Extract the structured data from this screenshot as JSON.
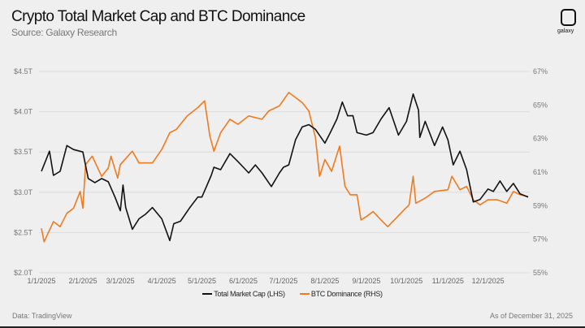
{
  "header": {
    "title": "Crypto Total Market Cap and BTC Dominance",
    "subtitle": "Source: Galaxy Research",
    "logo_text": "galaxy"
  },
  "footer": {
    "data_source": "Data: TradingView",
    "as_of": "As of December 31, 2025"
  },
  "chart_data": {
    "type": "line",
    "title": "Crypto Total Market Cap and BTC Dominance",
    "grid": true,
    "legend_placement": "bottom-center",
    "x_ticks": [
      "1/1/2025",
      "2/1/2025",
      "3/1/2025",
      "4/1/2025",
      "5/1/2025",
      "6/1/2025",
      "7/1/2025",
      "8/1/2025",
      "9/1/2025",
      "10/1/2025",
      "11/1/2025",
      "12/1/2025"
    ],
    "xlim": [
      "2025-01-01",
      "2025-12-31"
    ],
    "y_left": {
      "ticks": [
        "$4.5T",
        "$4.0T",
        "$3.5T",
        "$3.0T",
        "$2.5T",
        "$2.0T"
      ],
      "lim": [
        2.0,
        4.5
      ],
      "unit": "$T"
    },
    "y_right": {
      "ticks": [
        "67%",
        "65%",
        "63%",
        "61%",
        "59%",
        "57%",
        "55%"
      ],
      "lim": [
        55,
        67
      ],
      "unit": "%"
    },
    "series": [
      {
        "name": "Total Market Cap (LHS)",
        "axis": "left",
        "color": "#111111",
        "points": [
          [
            "2025-01-01",
            3.25
          ],
          [
            "2025-01-07",
            3.5
          ],
          [
            "2025-01-10",
            3.2
          ],
          [
            "2025-01-15",
            3.25
          ],
          [
            "2025-01-20",
            3.57
          ],
          [
            "2025-01-25",
            3.52
          ],
          [
            "2025-02-01",
            3.49
          ],
          [
            "2025-02-05",
            3.16
          ],
          [
            "2025-02-10",
            3.11
          ],
          [
            "2025-02-15",
            3.16
          ],
          [
            "2025-02-20",
            3.12
          ],
          [
            "2025-02-25",
            2.93
          ],
          [
            "2025-03-01",
            2.76
          ],
          [
            "2025-03-03",
            3.08
          ],
          [
            "2025-03-05",
            2.8
          ],
          [
            "2025-03-10",
            2.53
          ],
          [
            "2025-03-15",
            2.66
          ],
          [
            "2025-03-20",
            2.72
          ],
          [
            "2025-03-25",
            2.8
          ],
          [
            "2025-04-01",
            2.66
          ],
          [
            "2025-04-07",
            2.39
          ],
          [
            "2025-04-10",
            2.6
          ],
          [
            "2025-04-15",
            2.63
          ],
          [
            "2025-04-22",
            2.8
          ],
          [
            "2025-04-28",
            2.93
          ],
          [
            "2025-05-01",
            2.93
          ],
          [
            "2025-05-08",
            3.2
          ],
          [
            "2025-05-10",
            3.3
          ],
          [
            "2025-05-15",
            3.27
          ],
          [
            "2025-05-22",
            3.47
          ],
          [
            "2025-05-28",
            3.37
          ],
          [
            "2025-06-01",
            3.3
          ],
          [
            "2025-06-05",
            3.23
          ],
          [
            "2025-06-10",
            3.33
          ],
          [
            "2025-06-15",
            3.23
          ],
          [
            "2025-06-22",
            3.06
          ],
          [
            "2025-06-28",
            3.23
          ],
          [
            "2025-07-01",
            3.3
          ],
          [
            "2025-07-05",
            3.33
          ],
          [
            "2025-07-10",
            3.64
          ],
          [
            "2025-07-15",
            3.8
          ],
          [
            "2025-07-20",
            3.83
          ],
          [
            "2025-07-25",
            3.77
          ],
          [
            "2025-08-01",
            3.6
          ],
          [
            "2025-08-05",
            3.73
          ],
          [
            "2025-08-10",
            3.9
          ],
          [
            "2025-08-14",
            4.11
          ],
          [
            "2025-08-18",
            3.94
          ],
          [
            "2025-08-22",
            3.94
          ],
          [
            "2025-08-25",
            3.73
          ],
          [
            "2025-09-01",
            3.7
          ],
          [
            "2025-09-06",
            3.73
          ],
          [
            "2025-09-12",
            3.9
          ],
          [
            "2025-09-18",
            4.04
          ],
          [
            "2025-09-25",
            3.7
          ],
          [
            "2025-10-01",
            3.87
          ],
          [
            "2025-10-06",
            4.21
          ],
          [
            "2025-10-10",
            4.01
          ],
          [
            "2025-10-11",
            3.67
          ],
          [
            "2025-10-15",
            3.87
          ],
          [
            "2025-10-22",
            3.57
          ],
          [
            "2025-10-28",
            3.8
          ],
          [
            "2025-11-01",
            3.64
          ],
          [
            "2025-11-05",
            3.33
          ],
          [
            "2025-11-10",
            3.5
          ],
          [
            "2025-11-15",
            3.27
          ],
          [
            "2025-11-20",
            2.87
          ],
          [
            "2025-11-25",
            2.9
          ],
          [
            "2025-12-01",
            3.03
          ],
          [
            "2025-12-05",
            3.0
          ],
          [
            "2025-12-10",
            3.13
          ],
          [
            "2025-12-15",
            3.0
          ],
          [
            "2025-12-20",
            3.1
          ],
          [
            "2025-12-25",
            2.97
          ],
          [
            "2025-12-31",
            2.93
          ]
        ]
      },
      {
        "name": "BTC Dominance (RHS)",
        "axis": "right",
        "color": "#f07a1f",
        "points": [
          [
            "2025-01-01",
            57.6
          ],
          [
            "2025-01-03",
            56.8
          ],
          [
            "2025-01-10",
            58.0
          ],
          [
            "2025-01-15",
            57.7
          ],
          [
            "2025-01-20",
            58.5
          ],
          [
            "2025-01-25",
            58.8
          ],
          [
            "2025-01-30",
            59.8
          ],
          [
            "2025-02-01",
            58.8
          ],
          [
            "2025-02-03",
            61.4
          ],
          [
            "2025-02-08",
            61.9
          ],
          [
            "2025-02-15",
            60.7
          ],
          [
            "2025-02-20",
            61.2
          ],
          [
            "2025-02-22",
            61.9
          ],
          [
            "2025-02-27",
            60.6
          ],
          [
            "2025-03-01",
            61.4
          ],
          [
            "2025-03-10",
            62.2
          ],
          [
            "2025-03-15",
            61.5
          ],
          [
            "2025-03-25",
            61.5
          ],
          [
            "2025-04-01",
            62.3
          ],
          [
            "2025-04-07",
            63.3
          ],
          [
            "2025-04-12",
            63.5
          ],
          [
            "2025-04-20",
            64.3
          ],
          [
            "2025-04-28",
            64.8
          ],
          [
            "2025-05-03",
            65.2
          ],
          [
            "2025-05-07",
            63.1
          ],
          [
            "2025-05-10",
            62.2
          ],
          [
            "2025-05-15",
            63.3
          ],
          [
            "2025-05-22",
            64.1
          ],
          [
            "2025-05-28",
            63.8
          ],
          [
            "2025-06-05",
            64.3
          ],
          [
            "2025-06-15",
            64.1
          ],
          [
            "2025-06-20",
            64.6
          ],
          [
            "2025-06-28",
            64.9
          ],
          [
            "2025-07-05",
            65.7
          ],
          [
            "2025-07-10",
            65.4
          ],
          [
            "2025-07-15",
            65.1
          ],
          [
            "2025-07-20",
            64.6
          ],
          [
            "2025-07-25",
            63.0
          ],
          [
            "2025-07-28",
            60.7
          ],
          [
            "2025-08-01",
            61.7
          ],
          [
            "2025-08-06",
            61.0
          ],
          [
            "2025-08-12",
            62.5
          ],
          [
            "2025-08-16",
            60.1
          ],
          [
            "2025-08-20",
            59.6
          ],
          [
            "2025-08-25",
            59.6
          ],
          [
            "2025-08-28",
            58.1
          ],
          [
            "2025-09-01",
            58.3
          ],
          [
            "2025-09-06",
            58.6
          ],
          [
            "2025-09-12",
            58.1
          ],
          [
            "2025-09-17",
            57.7
          ],
          [
            "2025-09-22",
            58.1
          ],
          [
            "2025-09-28",
            58.6
          ],
          [
            "2025-10-03",
            59.0
          ],
          [
            "2025-10-06",
            60.7
          ],
          [
            "2025-10-08",
            59.1
          ],
          [
            "2025-10-15",
            59.4
          ],
          [
            "2025-10-22",
            59.8
          ],
          [
            "2025-11-01",
            59.9
          ],
          [
            "2025-11-04",
            60.7
          ],
          [
            "2025-11-10",
            59.9
          ],
          [
            "2025-11-15",
            60.1
          ],
          [
            "2025-11-20",
            59.3
          ],
          [
            "2025-11-25",
            59.0
          ],
          [
            "2025-12-01",
            59.3
          ],
          [
            "2025-12-08",
            59.3
          ],
          [
            "2025-12-15",
            59.1
          ],
          [
            "2025-12-20",
            59.8
          ],
          [
            "2025-12-25",
            59.6
          ],
          [
            "2025-12-31",
            59.5
          ]
        ]
      }
    ]
  }
}
